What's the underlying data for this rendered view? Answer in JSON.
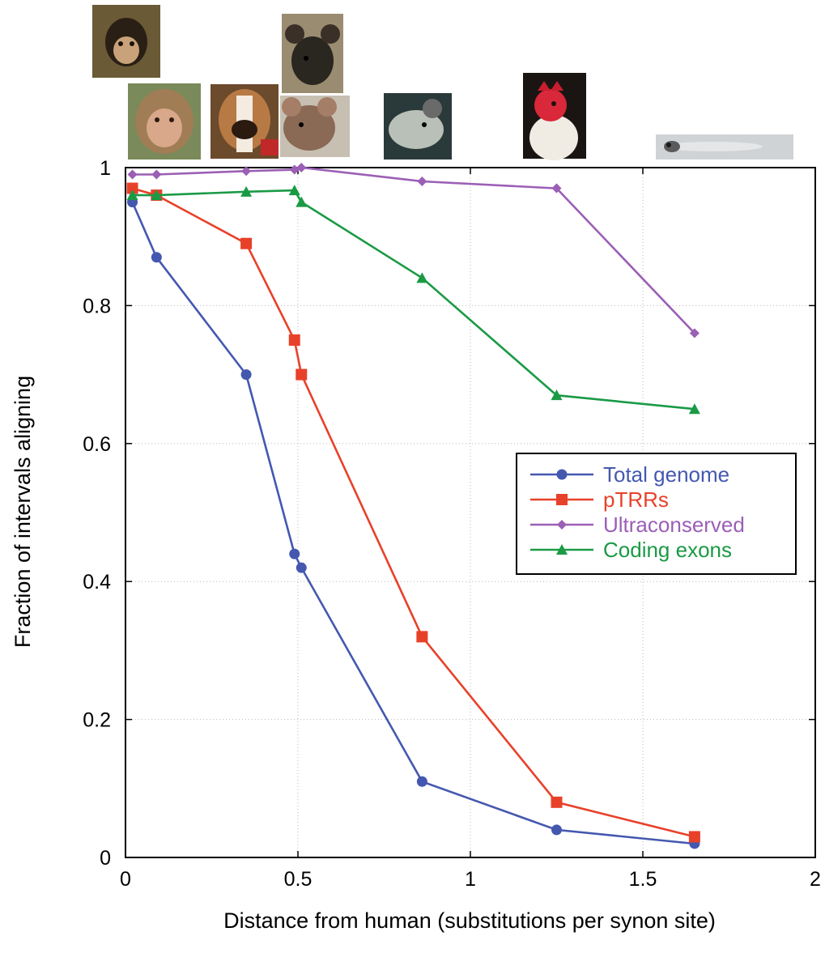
{
  "chart_data": {
    "type": "line",
    "xlabel": "Distance from human (substitutions per synon site)",
    "ylabel": "Fraction of intervals aligning",
    "xlim": [
      0,
      2
    ],
    "ylim": [
      0,
      1
    ],
    "x_ticks": [
      0,
      0.5,
      1,
      1.5,
      2
    ],
    "y_ticks": [
      0,
      0.2,
      0.4,
      0.6,
      0.8,
      1
    ],
    "x_tick_labels": [
      "0",
      "0.5",
      "1",
      "1.5",
      "2"
    ],
    "y_tick_labels": [
      "0",
      "0.2",
      "0.4",
      "0.6",
      "0.8",
      "1"
    ],
    "grid": true,
    "legend_position": "right-middle",
    "series": [
      {
        "name": "Total genome",
        "color": "#4458b0",
        "marker": "circle",
        "x": [
          0.02,
          0.09,
          0.35,
          0.49,
          0.51,
          0.86,
          1.25,
          1.65
        ],
        "y": [
          0.95,
          0.87,
          0.7,
          0.44,
          0.42,
          0.11,
          0.04,
          0.02
        ]
      },
      {
        "name": "pTRRs",
        "color": "#e8412a",
        "marker": "square",
        "x": [
          0.02,
          0.09,
          0.35,
          0.49,
          0.51,
          0.86,
          1.25,
          1.65
        ],
        "y": [
          0.97,
          0.96,
          0.89,
          0.75,
          0.7,
          0.32,
          0.08,
          0.03
        ]
      },
      {
        "name": "Ultraconserved",
        "color": "#9b5fb5",
        "marker": "diamond",
        "x": [
          0.02,
          0.09,
          0.35,
          0.49,
          0.51,
          0.86,
          1.25,
          1.65
        ],
        "y": [
          0.99,
          0.99,
          0.995,
          0.997,
          1.0,
          0.98,
          0.97,
          0.76
        ]
      },
      {
        "name": "Coding exons",
        "color": "#1a9a45",
        "marker": "triangle",
        "x": [
          0.02,
          0.09,
          0.35,
          0.49,
          0.51,
          0.86,
          1.25,
          1.65
        ],
        "y": [
          0.96,
          0.96,
          0.965,
          0.967,
          0.95,
          0.84,
          0.67,
          0.65
        ]
      }
    ],
    "species_images": [
      {
        "icon": "chimpanzee-photo-icon",
        "at_x": 0.02
      },
      {
        "icon": "macaque-photo-icon",
        "at_x": 0.09
      },
      {
        "icon": "dog-photo-icon",
        "at_x": 0.35
      },
      {
        "icon": "mouse-photo-icon",
        "at_x": 0.49
      },
      {
        "icon": "rat-photo-icon",
        "at_x": 0.51
      },
      {
        "icon": "opossum-photo-icon",
        "at_x": 0.86
      },
      {
        "icon": "chicken-photo-icon",
        "at_x": 1.25
      },
      {
        "icon": "zebrafish-photo-icon",
        "at_x": 1.65
      }
    ]
  }
}
